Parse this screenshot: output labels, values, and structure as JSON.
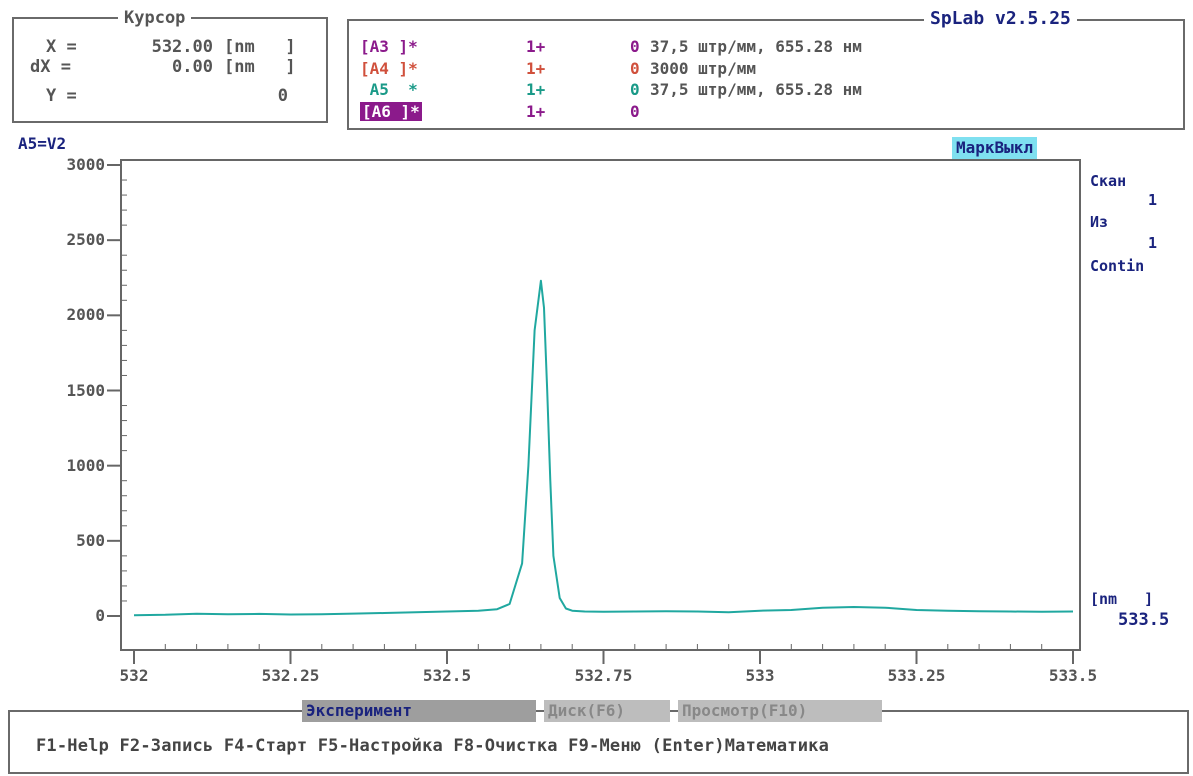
{
  "cursor": {
    "title": "Курсор",
    "rows": [
      {
        "label": "X =",
        "value": "532.00",
        "unit": "[nm   ]"
      },
      {
        "label": "dX =",
        "value": "0.00",
        "unit": "[nm   ]"
      },
      {
        "label": "Y =",
        "value": "0",
        "unit": ""
      }
    ]
  },
  "app": {
    "title": "SpLab v2.5.25"
  },
  "profiles": [
    {
      "name": "[A3 ]*",
      "mult": "1+",
      "zero": "0",
      "desc": "37,5 штр/мм, 655.28 нм",
      "color": "#8b1a8b",
      "selected": false
    },
    {
      "name": "[A4 ]*",
      "mult": "1+",
      "zero": "0",
      "desc": "3000 штр/мм",
      "color": "#d0503c",
      "selected": false
    },
    {
      "name": " A5  *",
      "mult": "1+",
      "zero": "0",
      "desc": "37,5 штр/мм, 655.28 нм",
      "color": "#1a9a88",
      "selected": false
    },
    {
      "name": "[A6 ]*",
      "mult": "1+",
      "zero": "0",
      "desc": "",
      "color": "#8b1a8b",
      "selected": true
    }
  ],
  "graph": {
    "channel_label": "A5=V2",
    "mark_button": "МаркВыкл",
    "side": {
      "scan_label": "Скан",
      "scan_value": "1",
      "of_label": "Из",
      "of_value": "1",
      "mode": "Contin",
      "unit": "[nm   ]",
      "x_end": "533.5"
    },
    "colors": {
      "line": "#20a8a0",
      "axis": "#666666"
    }
  },
  "chart_data": {
    "type": "line",
    "x_ticks": [
      "532",
      "532.25",
      "532.5",
      "532.75",
      "533",
      "533.25",
      "533.5"
    ],
    "y_ticks": [
      "3000",
      "2500",
      "2000",
      "1500",
      "1000",
      "500",
      "0"
    ],
    "xlim": [
      532,
      533.5
    ],
    "ylim": [
      0,
      3000
    ],
    "grid": false,
    "series": [
      {
        "x": [
          532.0,
          532.05,
          532.1,
          532.15,
          532.2,
          532.25,
          532.3,
          532.35,
          532.4,
          532.45,
          532.5,
          532.55,
          532.58,
          532.6,
          532.62,
          532.63,
          532.64,
          532.65,
          532.655,
          532.66,
          532.665,
          532.67,
          532.68,
          532.69,
          532.7,
          532.72,
          532.75,
          532.8,
          532.85,
          532.9,
          532.95,
          533.0,
          533.05,
          533.1,
          533.15,
          533.2,
          533.25,
          533.3,
          533.35,
          533.4,
          533.45,
          533.5
        ],
        "y": [
          5,
          8,
          15,
          12,
          14,
          10,
          12,
          16,
          20,
          25,
          30,
          35,
          45,
          80,
          350,
          1000,
          1900,
          2230,
          2050,
          1500,
          900,
          400,
          120,
          50,
          35,
          30,
          28,
          30,
          32,
          30,
          25,
          35,
          40,
          55,
          60,
          55,
          40,
          35,
          32,
          30,
          28,
          30
        ]
      }
    ]
  },
  "menu": {
    "tabs": [
      {
        "label": "Эксперимент",
        "active": true
      },
      {
        "label": "Диск(F6)",
        "active": false
      },
      {
        "label": "Просмотр(F10)",
        "active": false
      }
    ],
    "fkeys": "F1-Help F2-Запись F4-Старт F5-Настройка F8-Очистка F9-Меню (Enter)Математика"
  }
}
